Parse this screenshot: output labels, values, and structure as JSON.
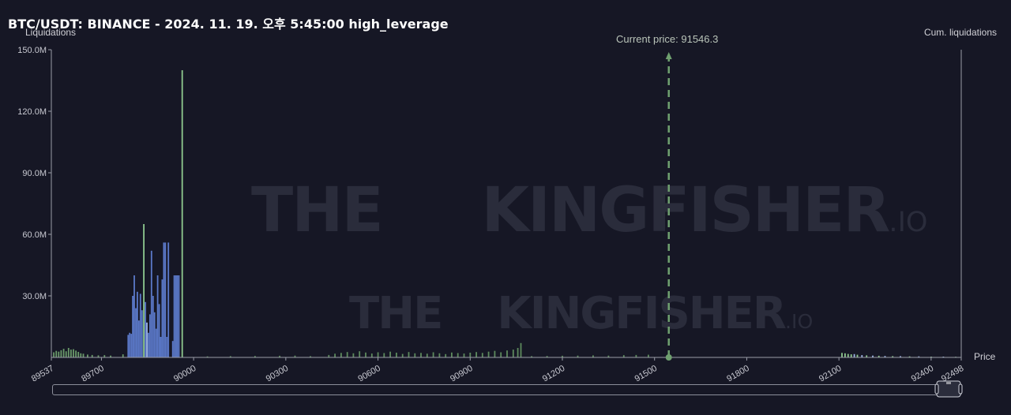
{
  "header": {
    "title": "BTC/USDT: BINANCE - 2024. 11. 19. 오후 5:45:00 high_leverage"
  },
  "axes": {
    "y_label": "Liquidations",
    "y2_label": "Cum. liquidations",
    "x_label": "Price",
    "current_price_label": "Current price: 91546.3"
  },
  "watermark": {
    "text": "THE KINGFISHER",
    "suffix": ".IO"
  },
  "chart_data": {
    "type": "bar",
    "title": "BTC/USDT: BINANCE - 2024. 11. 19. 오후 5:45:00 high_leverage",
    "xlabel": "Price",
    "ylabel": "Liquidations",
    "y2label": "Cum. liquidations",
    "xlim": [
      89537,
      92498
    ],
    "ylim": [
      0,
      150000000
    ],
    "x_ticks": [
      "89537",
      "89700",
      "90000",
      "90300",
      "90600",
      "90900",
      "91200",
      "91500",
      "91800",
      "92100",
      "92400",
      "92498"
    ],
    "y_ticks": [
      "150.0M",
      "120.0M",
      "90.0M",
      "60.0M",
      "30.0M"
    ],
    "y_tick_values": [
      150000000,
      120000000,
      90000000,
      60000000,
      30000000
    ],
    "current_price": 91546.3,
    "colors": {
      "short": "#5b79c9",
      "long": "#8fc98f",
      "small": "#5d8a5d",
      "marker": "#6fa06f",
      "axis": "#9a9ca8"
    },
    "series": [
      {
        "name": "Liquidations",
        "bars": [
          {
            "x": 89545,
            "v": 2500000,
            "c": "#6a9a6a"
          },
          {
            "x": 89553,
            "v": 3200000,
            "c": "#6a9a6a"
          },
          {
            "x": 89561,
            "v": 2800000,
            "c": "#6a9a6a"
          },
          {
            "x": 89569,
            "v": 3500000,
            "c": "#6a9a6a"
          },
          {
            "x": 89577,
            "v": 4200000,
            "c": "#6a9a6a"
          },
          {
            "x": 89585,
            "v": 3000000,
            "c": "#6a9a6a"
          },
          {
            "x": 89593,
            "v": 4600000,
            "c": "#6a9a6a"
          },
          {
            "x": 89601,
            "v": 3800000,
            "c": "#6a9a6a"
          },
          {
            "x": 89609,
            "v": 4000000,
            "c": "#6a9a6a"
          },
          {
            "x": 89617,
            "v": 3300000,
            "c": "#6a9a6a"
          },
          {
            "x": 89625,
            "v": 2700000,
            "c": "#6a9a6a"
          },
          {
            "x": 89633,
            "v": 2000000,
            "c": "#6a9a6a"
          },
          {
            "x": 89641,
            "v": 1800000,
            "c": "#6a9a6a"
          },
          {
            "x": 89655,
            "v": 1400000,
            "c": "#6a9a6a"
          },
          {
            "x": 89670,
            "v": 1200000,
            "c": "#6a9a6a"
          },
          {
            "x": 89690,
            "v": 1000000,
            "c": "#6a9a6a"
          },
          {
            "x": 89710,
            "v": 1100000,
            "c": "#6a9a6a"
          },
          {
            "x": 89730,
            "v": 900000,
            "c": "#6a9a6a"
          },
          {
            "x": 89770,
            "v": 1500000,
            "c": "#6a9a6a"
          },
          {
            "x": 89787,
            "v": 11000000,
            "c": "#5b79c9"
          },
          {
            "x": 89792,
            "v": 12000000,
            "c": "#5b79c9"
          },
          {
            "x": 89797,
            "v": 11500000,
            "c": "#5b79c9"
          },
          {
            "x": 89802,
            "v": 30000000,
            "c": "#5b79c9"
          },
          {
            "x": 89807,
            "v": 40000000,
            "c": "#5b79c9"
          },
          {
            "x": 89812,
            "v": 24000000,
            "c": "#5b79c9"
          },
          {
            "x": 89817,
            "v": 32000000,
            "c": "#5b79c9"
          },
          {
            "x": 89822,
            "v": 18000000,
            "c": "#5b79c9"
          },
          {
            "x": 89827,
            "v": 31000000,
            "c": "#5b79c9"
          },
          {
            "x": 89832,
            "v": 23000000,
            "c": "#5b79c9"
          },
          {
            "x": 89838,
            "v": 65000000,
            "c": "#8fc98f"
          },
          {
            "x": 89843,
            "v": 27000000,
            "c": "#5b79c9"
          },
          {
            "x": 89848,
            "v": 17000000,
            "c": "#9fb6e6"
          },
          {
            "x": 89853,
            "v": 12000000,
            "c": "#5b79c9"
          },
          {
            "x": 89858,
            "v": 21000000,
            "c": "#5b79c9"
          },
          {
            "x": 89863,
            "v": 52000000,
            "c": "#5b79c9"
          },
          {
            "x": 89868,
            "v": 30000000,
            "c": "#5b79c9"
          },
          {
            "x": 89873,
            "v": 22000000,
            "c": "#5b79c9"
          },
          {
            "x": 89878,
            "v": 14000000,
            "c": "#5b79c9"
          },
          {
            "x": 89883,
            "v": 40000000,
            "c": "#5b79c9"
          },
          {
            "x": 89888,
            "v": 26000000,
            "c": "#5b79c9"
          },
          {
            "x": 89893,
            "v": 10000000,
            "c": "#5b79c9"
          },
          {
            "x": 89898,
            "v": 38000000,
            "c": "#5b79c9"
          },
          {
            "x": 89903,
            "v": 56000000,
            "c": "#5b79c9"
          },
          {
            "x": 89908,
            "v": 56000000,
            "c": "#5b79c9"
          },
          {
            "x": 89913,
            "v": 10000000,
            "c": "#5b79c9"
          },
          {
            "x": 89918,
            "v": 56000000,
            "c": "#5b79c9"
          },
          {
            "x": 89932,
            "v": 8000000,
            "c": "#5b79c9"
          },
          {
            "x": 89937,
            "v": 40000000,
            "c": "#5b79c9"
          },
          {
            "x": 89942,
            "v": 40000000,
            "c": "#5b79c9"
          },
          {
            "x": 89947,
            "v": 40000000,
            "c": "#5b79c9"
          },
          {
            "x": 89952,
            "v": 40000000,
            "c": "#5b79c9"
          },
          {
            "x": 89963,
            "v": 140000000,
            "c": "#8fc98f"
          },
          {
            "x": 90045,
            "v": 500000,
            "c": "#5d8a5d"
          },
          {
            "x": 90120,
            "v": 600000,
            "c": "#5d8a5d"
          },
          {
            "x": 90200,
            "v": 700000,
            "c": "#5d8a5d"
          },
          {
            "x": 90280,
            "v": 800000,
            "c": "#5d8a5d"
          },
          {
            "x": 90330,
            "v": 900000,
            "c": "#5d8a5d"
          },
          {
            "x": 90380,
            "v": 600000,
            "c": "#5d8a5d"
          },
          {
            "x": 90440,
            "v": 1200000,
            "c": "#5d8a5d"
          },
          {
            "x": 90460,
            "v": 1800000,
            "c": "#5d8a5d"
          },
          {
            "x": 90480,
            "v": 2200000,
            "c": "#5d8a5d"
          },
          {
            "x": 90500,
            "v": 2600000,
            "c": "#5d8a5d"
          },
          {
            "x": 90520,
            "v": 2000000,
            "c": "#5d8a5d"
          },
          {
            "x": 90540,
            "v": 3000000,
            "c": "#5d8a5d"
          },
          {
            "x": 90560,
            "v": 2400000,
            "c": "#5d8a5d"
          },
          {
            "x": 90580,
            "v": 1900000,
            "c": "#5d8a5d"
          },
          {
            "x": 90600,
            "v": 2500000,
            "c": "#5d8a5d"
          },
          {
            "x": 90620,
            "v": 2100000,
            "c": "#5d8a5d"
          },
          {
            "x": 90640,
            "v": 2800000,
            "c": "#5d8a5d"
          },
          {
            "x": 90660,
            "v": 2300000,
            "c": "#5d8a5d"
          },
          {
            "x": 90680,
            "v": 1700000,
            "c": "#5d8a5d"
          },
          {
            "x": 90700,
            "v": 2600000,
            "c": "#5d8a5d"
          },
          {
            "x": 90720,
            "v": 2000000,
            "c": "#5d8a5d"
          },
          {
            "x": 90740,
            "v": 2200000,
            "c": "#5d8a5d"
          },
          {
            "x": 90760,
            "v": 1800000,
            "c": "#5d8a5d"
          },
          {
            "x": 90780,
            "v": 2500000,
            "c": "#5d8a5d"
          },
          {
            "x": 90800,
            "v": 2000000,
            "c": "#5d8a5d"
          },
          {
            "x": 90820,
            "v": 1600000,
            "c": "#5d8a5d"
          },
          {
            "x": 90840,
            "v": 2400000,
            "c": "#5d8a5d"
          },
          {
            "x": 90860,
            "v": 2100000,
            "c": "#5d8a5d"
          },
          {
            "x": 90880,
            "v": 1900000,
            "c": "#5d8a5d"
          },
          {
            "x": 90900,
            "v": 2300000,
            "c": "#5d8a5d"
          },
          {
            "x": 90920,
            "v": 2600000,
            "c": "#5d8a5d"
          },
          {
            "x": 90940,
            "v": 2200000,
            "c": "#5d8a5d"
          },
          {
            "x": 90960,
            "v": 2800000,
            "c": "#5d8a5d"
          },
          {
            "x": 90980,
            "v": 3200000,
            "c": "#5d8a5d"
          },
          {
            "x": 91000,
            "v": 2500000,
            "c": "#5d8a5d"
          },
          {
            "x": 91020,
            "v": 3400000,
            "c": "#5d8a5d"
          },
          {
            "x": 91040,
            "v": 3800000,
            "c": "#5d8a5d"
          },
          {
            "x": 91055,
            "v": 4600000,
            "c": "#5d8a5d"
          },
          {
            "x": 91065,
            "v": 7000000,
            "c": "#5d8a5d"
          },
          {
            "x": 91100,
            "v": 600000,
            "c": "#5d8a5d"
          },
          {
            "x": 91150,
            "v": 700000,
            "c": "#5d8a5d"
          },
          {
            "x": 91200,
            "v": 800000,
            "c": "#5d8a5d"
          },
          {
            "x": 91250,
            "v": 900000,
            "c": "#5d8a5d"
          },
          {
            "x": 91300,
            "v": 1000000,
            "c": "#5d8a5d"
          },
          {
            "x": 91350,
            "v": 900000,
            "c": "#5d8a5d"
          },
          {
            "x": 91400,
            "v": 1100000,
            "c": "#5d8a5d"
          },
          {
            "x": 91440,
            "v": 1200000,
            "c": "#5d8a5d"
          },
          {
            "x": 91480,
            "v": 1300000,
            "c": "#5d8a5d"
          },
          {
            "x": 92110,
            "v": 2200000,
            "c": "#8fc98f"
          },
          {
            "x": 92120,
            "v": 2000000,
            "c": "#8fc98f"
          },
          {
            "x": 92130,
            "v": 1700000,
            "c": "#8fc98f"
          },
          {
            "x": 92140,
            "v": 1500000,
            "c": "#8fc98f"
          },
          {
            "x": 92150,
            "v": 1600000,
            "c": "#9fb6e6"
          },
          {
            "x": 92160,
            "v": 1300000,
            "c": "#8fc98f"
          },
          {
            "x": 92175,
            "v": 1100000,
            "c": "#9fb6e6"
          },
          {
            "x": 92190,
            "v": 1000000,
            "c": "#8fc98f"
          },
          {
            "x": 92210,
            "v": 900000,
            "c": "#9fb6e6"
          },
          {
            "x": 92230,
            "v": 800000,
            "c": "#8fc98f"
          },
          {
            "x": 92250,
            "v": 700000,
            "c": "#9fb6e6"
          },
          {
            "x": 92275,
            "v": 600000,
            "c": "#8fc98f"
          },
          {
            "x": 92300,
            "v": 600000,
            "c": "#9fb6e6"
          },
          {
            "x": 92330,
            "v": 500000,
            "c": "#8fc98f"
          },
          {
            "x": 92360,
            "v": 500000,
            "c": "#9fb6e6"
          },
          {
            "x": 92400,
            "v": 400000,
            "c": "#8fc98f"
          },
          {
            "x": 92440,
            "v": 400000,
            "c": "#9fb6e6"
          },
          {
            "x": 92480,
            "v": 300000,
            "c": "#8fc98f"
          }
        ]
      }
    ]
  }
}
